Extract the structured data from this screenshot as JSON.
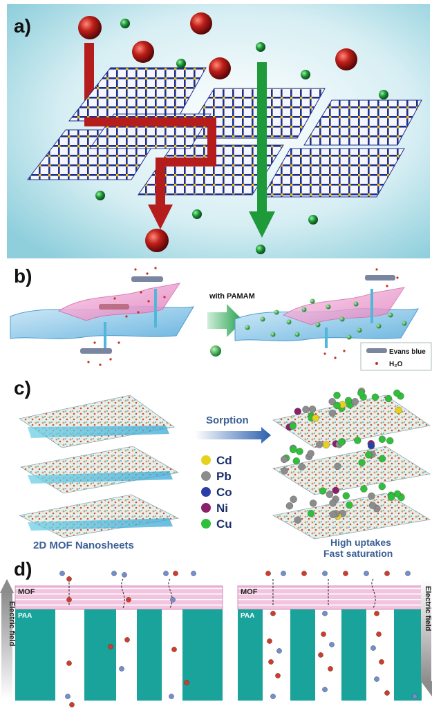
{
  "panels": {
    "a": {
      "label": "a)"
    },
    "b": {
      "label": "b)",
      "arrow_label": "with PAMAM",
      "legend": {
        "dye": "Evans blue",
        "water": "H₂O"
      }
    },
    "c": {
      "label": "c)",
      "arrow_label": "Sorption",
      "left_caption": "2D MOF Nanosheets",
      "right_caption_line1": "High uptakes",
      "right_caption_line2": "Fast saturation",
      "legend": [
        {
          "name": "Cd",
          "color": "#e6d21a"
        },
        {
          "name": "Pb",
          "color": "#8c8c8c"
        },
        {
          "name": "Co",
          "color": "#2a3fa6"
        },
        {
          "name": "Ni",
          "color": "#8a1f6b"
        },
        {
          "name": "Cu",
          "color": "#2fbf3a"
        }
      ]
    },
    "d": {
      "label": "d)",
      "mof_label": "MOF",
      "paa_label": "PAA",
      "field_label": "Electric field"
    }
  },
  "colors": {
    "red_ion": "#b01515",
    "green_ion": "#1f8a2e",
    "grid_blue": "#1d2f8c",
    "node_yellow": "#f2c200",
    "teal": "#1aa39a",
    "pink": "#e8a8d0"
  }
}
